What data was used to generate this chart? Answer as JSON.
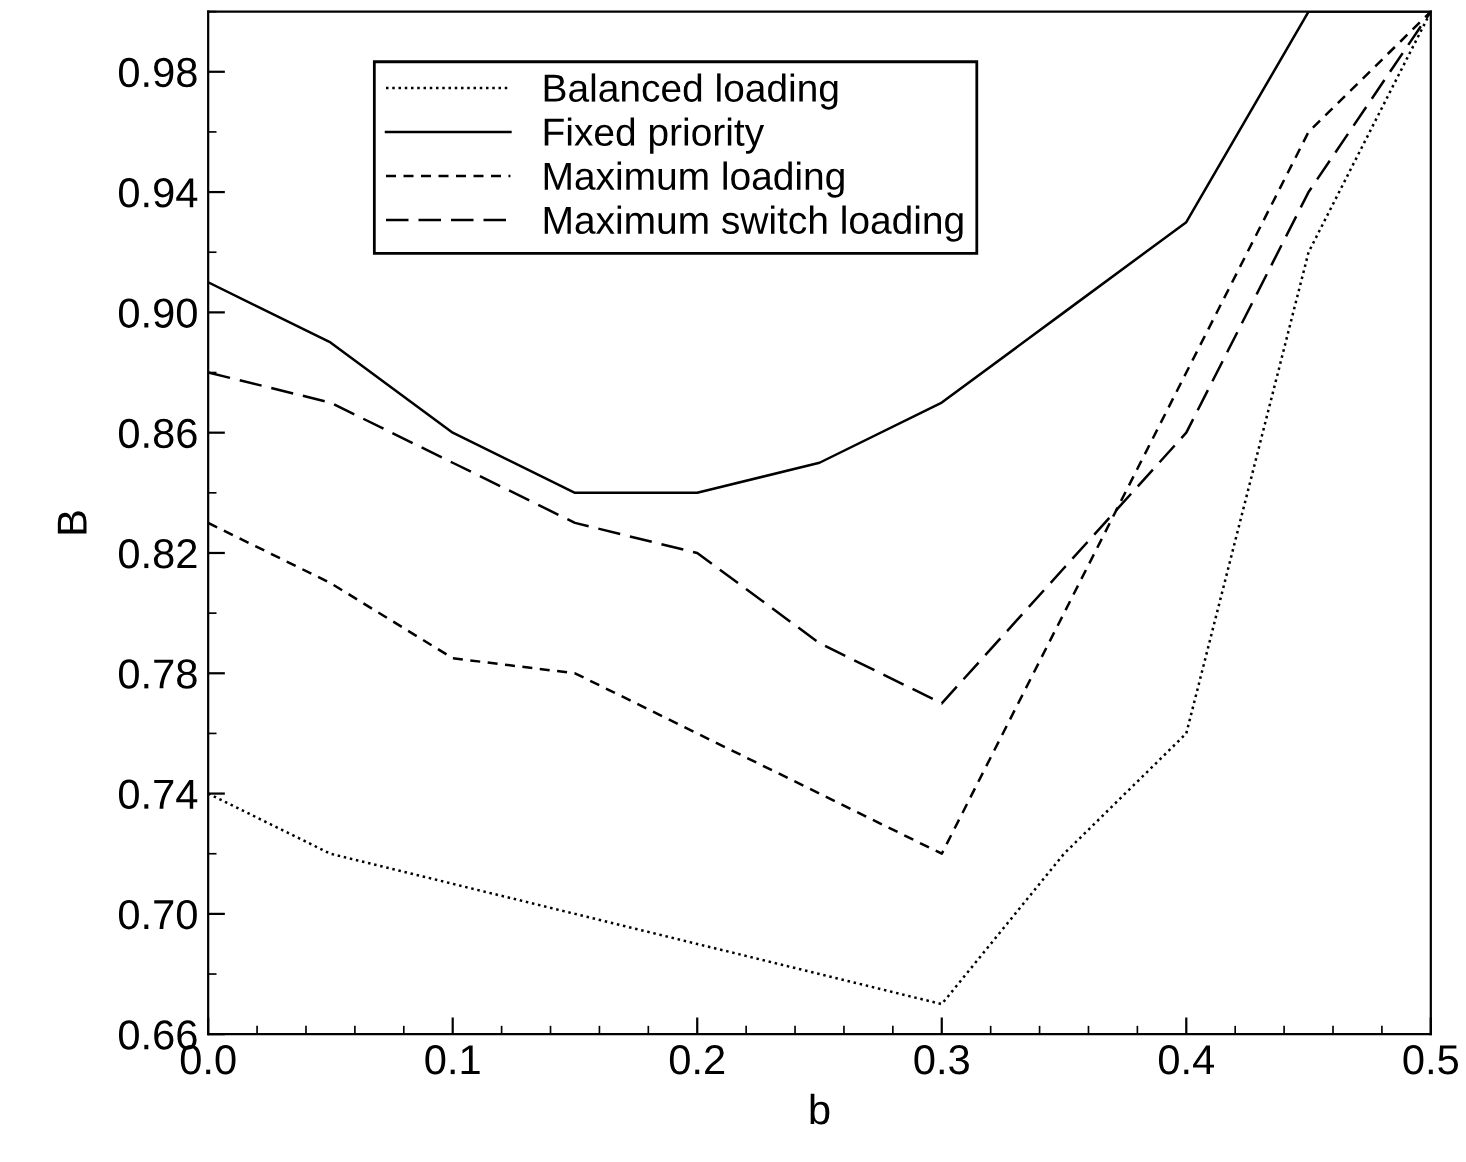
{
  "chart_data": {
    "type": "line",
    "xlabel": "b",
    "ylabel": "B",
    "x": [
      0.0,
      0.05,
      0.1,
      0.15,
      0.2,
      0.25,
      0.3,
      0.35,
      0.4,
      0.45,
      0.5
    ],
    "series": [
      {
        "name": "Balanced loading",
        "color": "#000000",
        "line_style": "dotted",
        "values": [
          0.74,
          0.72,
          0.71,
          0.7,
          0.69,
          0.68,
          0.67,
          0.72,
          0.76,
          0.92,
          1.0
        ]
      },
      {
        "name": "Fixed priority",
        "color": "#000000",
        "line_style": "solid",
        "values": [
          0.91,
          0.89,
          0.86,
          0.84,
          0.84,
          0.85,
          0.87,
          0.9,
          0.93,
          1.0,
          1.0
        ]
      },
      {
        "name": "Maximum loading",
        "color": "#000000",
        "line_style": "dashed",
        "values": [
          0.83,
          0.81,
          0.785,
          0.78,
          0.76,
          0.74,
          0.72,
          0.8,
          0.88,
          0.96,
          1.0
        ]
      },
      {
        "name": "Maximum switch loading",
        "color": "#000000",
        "line_style": "longdash",
        "values": [
          0.88,
          0.87,
          0.85,
          0.83,
          0.82,
          0.79,
          0.77,
          0.815,
          0.86,
          0.94,
          1.0
        ]
      }
    ],
    "xlim": [
      0.0,
      0.5
    ],
    "ylim": [
      0.66,
      1.0
    ],
    "xticks": [
      {
        "value": 0.0,
        "label": "0.0"
      },
      0.1,
      0.2,
      0.3,
      0.4,
      0.5
    ],
    "yticks": [
      0.66,
      {
        "value": 0.7,
        "label": "0.70"
      },
      0.74,
      0.78,
      0.82,
      0.86,
      {
        "value": 0.9,
        "label": "0.90"
      },
      0.94,
      0.98
    ],
    "legend": "top left",
    "grid": false,
    "marker": "none"
  }
}
